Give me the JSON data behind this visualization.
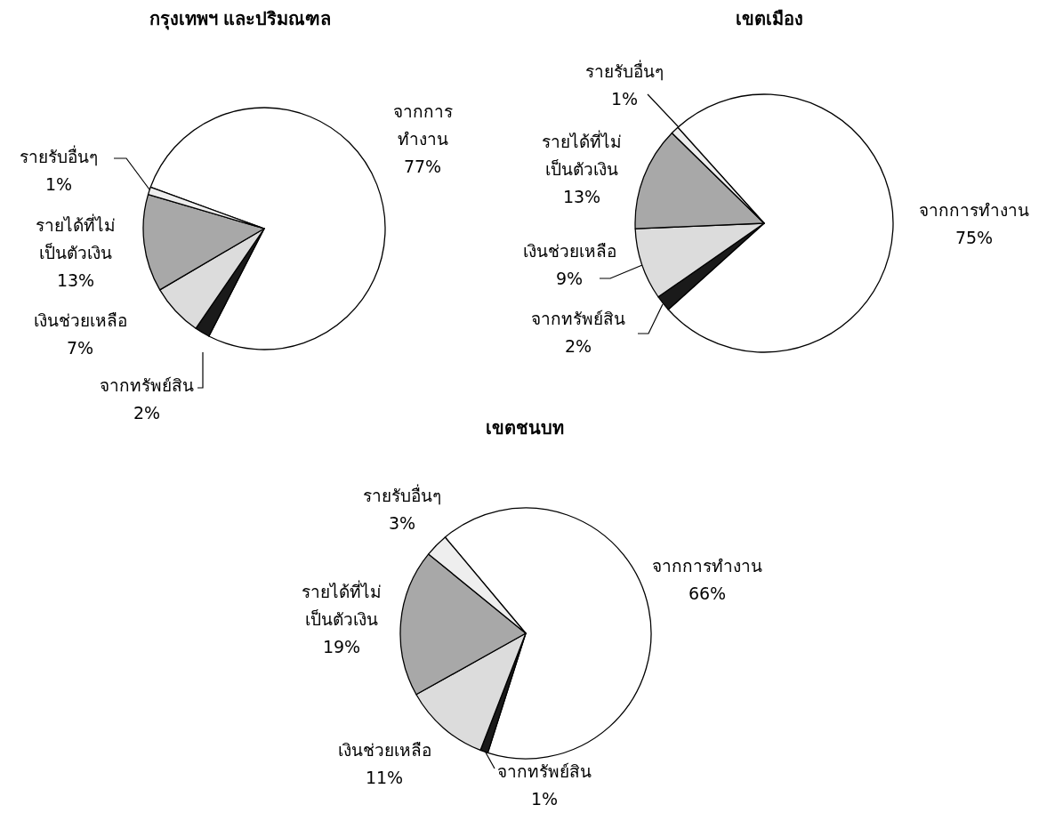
{
  "chart_data": [
    {
      "type": "pie",
      "title": "กรุงเทพฯ และปริมณฑล",
      "categories": [
        "จากการทำงาน",
        "จากทรัพย์สิน",
        "เงินช่วยเหลือ",
        "รายได้ที่ไม่เป็นตัวเงิน",
        "รายรับอื่นๆ"
      ],
      "values": [
        77,
        2,
        7,
        13,
        1
      ],
      "value_labels": [
        "77%",
        "2%",
        "7%",
        "13%",
        "1%"
      ],
      "colors": [
        "#ffffff",
        "#1a1a1a",
        "#dcdcdc",
        "#a8a8a8",
        "#eeeeee"
      ]
    },
    {
      "type": "pie",
      "title": "เขตเมือง",
      "categories": [
        "จากการทำงาน",
        "จากทรัพย์สิน",
        "เงินช่วยเหลือ",
        "รายได้ที่ไม่เป็นตัวเงิน",
        "รายรับอื่นๆ"
      ],
      "values": [
        75,
        2,
        9,
        13,
        1
      ],
      "value_labels": [
        "75%",
        "2%",
        "9%",
        "13%",
        "1%"
      ],
      "colors": [
        "#ffffff",
        "#1a1a1a",
        "#dcdcdc",
        "#a8a8a8",
        "#eeeeee"
      ]
    },
    {
      "type": "pie",
      "title": "เขตชนบท",
      "categories": [
        "จากการทำงาน",
        "จากทรัพย์สิน",
        "เงินช่วยเหลือ",
        "รายได้ที่ไม่เป็นตัวเงิน",
        "รายรับอื่นๆ"
      ],
      "values": [
        66,
        1,
        11,
        19,
        3
      ],
      "value_labels": [
        "66%",
        "1%",
        "11%",
        "19%",
        "3%"
      ],
      "colors": [
        "#ffffff",
        "#1a1a1a",
        "#dcdcdc",
        "#a8a8a8",
        "#eeeeee"
      ]
    }
  ]
}
